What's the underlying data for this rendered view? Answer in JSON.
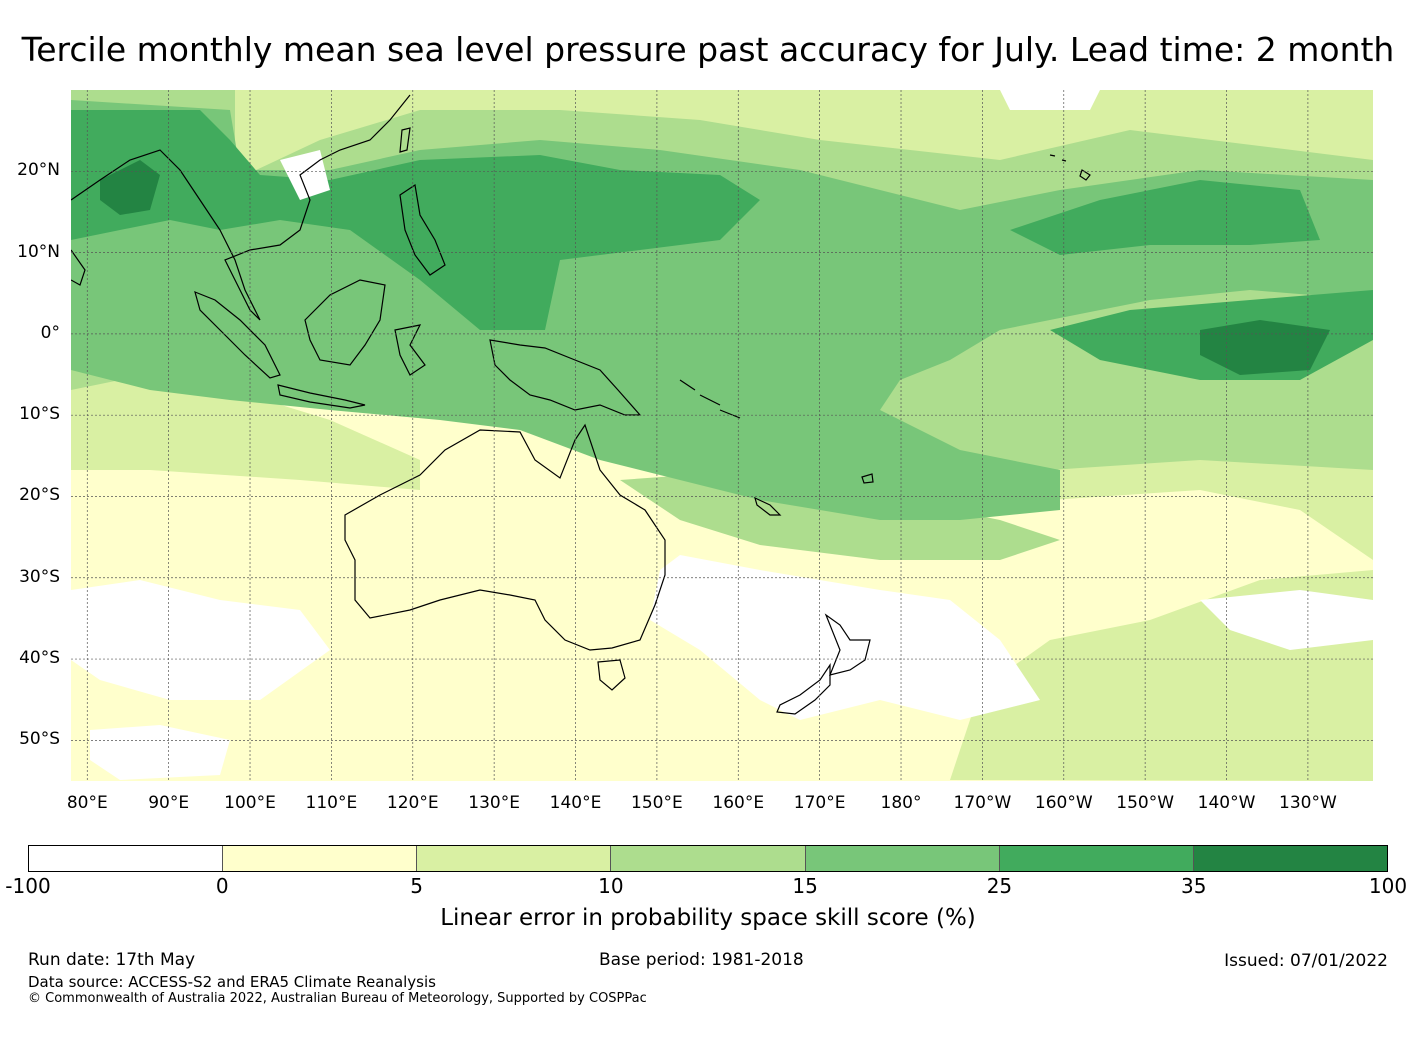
{
  "title": "Tercile monthly mean sea level pressure past accuracy for July. Lead time: 2 month",
  "map": {
    "lat_labels": [
      "20°N",
      "10°N",
      "0°",
      "10°S",
      "20°S",
      "30°S",
      "40°S",
      "50°S"
    ],
    "lon_labels": [
      "80°E",
      "90°E",
      "100°E",
      "110°E",
      "120°E",
      "130°E",
      "140°E",
      "150°E",
      "160°E",
      "170°E",
      "180°",
      "170°W",
      "160°W",
      "150°W",
      "140°W",
      "130°W"
    ],
    "lat_values": [
      20,
      10,
      0,
      -10,
      -20,
      -30,
      -40,
      -50
    ],
    "lon_values": [
      80,
      90,
      100,
      110,
      120,
      130,
      140,
      150,
      160,
      170,
      180,
      190,
      200,
      210,
      220,
      230
    ],
    "extent": {
      "lon_min": 78,
      "lon_max": 238,
      "lat_min": -55,
      "lat_max": 30
    }
  },
  "colorbar": {
    "ticks": [
      "-100",
      "0",
      "5",
      "10",
      "15",
      "25",
      "35",
      "100"
    ],
    "colors": [
      "#ffffff",
      "#ffffcc",
      "#d9f0a3",
      "#addd8e",
      "#78c679",
      "#41ab5d",
      "#238443"
    ],
    "label": "Linear error in probability space skill score (%)"
  },
  "footer": {
    "run_date": "Run date: 17th May",
    "base_period": "Base period: 1981-2018",
    "issued": "Issued: 07/01/2022",
    "data_source": "Data source: ACCESS-S2 and ERA5 Climate Reanalysis",
    "copyright": "© Commonwealth of Australia 2022, Australian Bureau of Meteorology, Supported by COSPPac"
  }
}
